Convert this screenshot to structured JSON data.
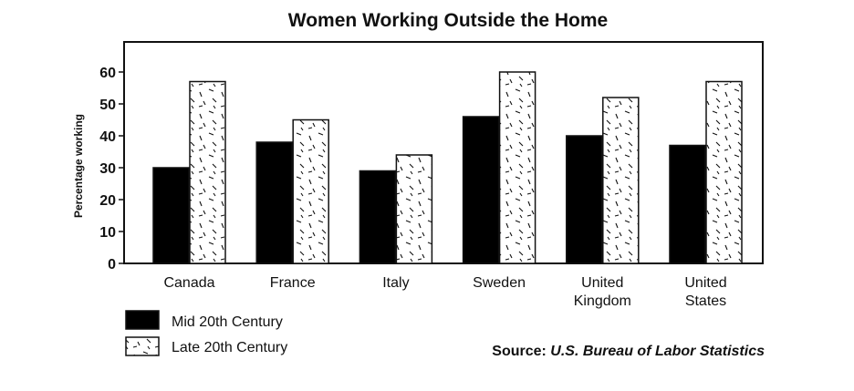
{
  "chart_data": {
    "type": "bar",
    "title": "Women Working Outside the Home",
    "ylabel": "Percentage working",
    "xlabel": "",
    "ylim": [
      0,
      70
    ],
    "yticks": [
      0,
      10,
      20,
      30,
      40,
      50,
      60
    ],
    "grid": false,
    "legend_position": "bottom-left",
    "categories": [
      [
        "Canada"
      ],
      [
        "France"
      ],
      [
        "Italy"
      ],
      [
        "Sweden"
      ],
      [
        "United",
        "Kingdom"
      ],
      [
        "United",
        "States"
      ]
    ],
    "series": [
      {
        "name": "Mid 20th Century",
        "fill": "solid",
        "color": "#000000",
        "values": [
          30,
          38,
          29,
          46,
          40,
          37
        ]
      },
      {
        "name": "Late 20th Century",
        "fill": "dash-pattern",
        "color": "#ffffff",
        "values": [
          57,
          45,
          34,
          60,
          52,
          57
        ]
      }
    ],
    "source": {
      "prefix": "Source: ",
      "text": "U.S. Bureau of Labor Statistics"
    }
  }
}
